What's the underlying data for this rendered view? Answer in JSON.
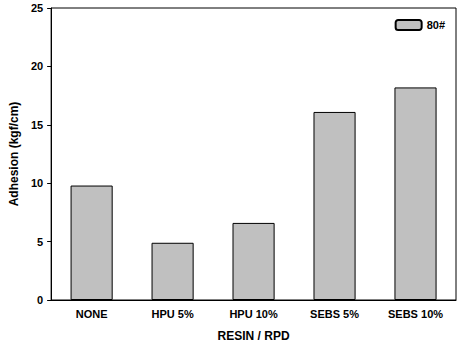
{
  "chart_data": {
    "type": "bar",
    "categories": [
      "NONE",
      "HPU 5%",
      "HPU 10%",
      "SEBS 5%",
      "SEBS 10%"
    ],
    "series": [
      {
        "name": "80#",
        "color": "#c0c0c0",
        "values": [
          9.8,
          4.9,
          6.6,
          16.1,
          18.2
        ]
      }
    ],
    "xlabel": "RESIN / RPD",
    "ylabel": "Adhesion (kgf/cm)",
    "ylim": [
      0,
      25
    ],
    "yticks": [
      0,
      5,
      10,
      15,
      20,
      25
    ],
    "grid": false,
    "legend": "upper right"
  }
}
